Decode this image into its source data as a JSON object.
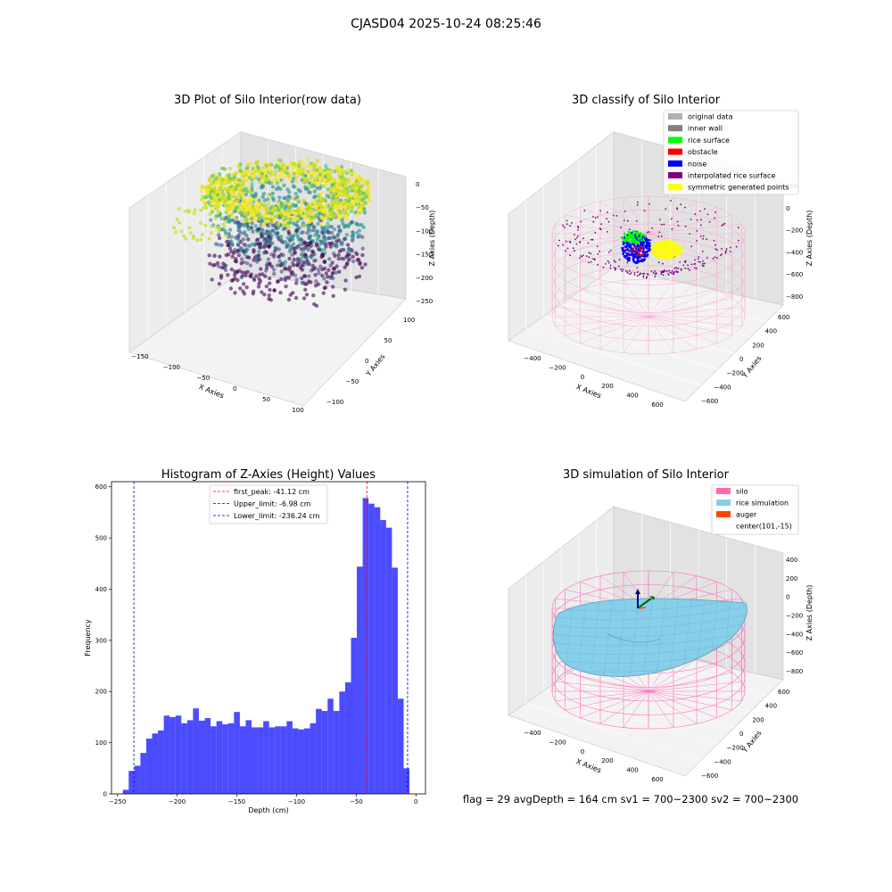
{
  "figure": {
    "suptitle": "CJASD04 2025-10-24 08:25:46",
    "footer": "flag = 29  avgDepth = 164 cm  sv1 = 700~2300  sv2 = 700~2300"
  },
  "panels": {
    "raw": {
      "title": "3D Plot of Silo Interior(row data)",
      "xlabel": "X Axies",
      "ylabel": "Y Axies",
      "zlabel": "Z Axies (Depth)",
      "xticks": [
        "−150",
        "−100",
        "−50",
        "0",
        "50",
        "100"
      ],
      "yticks": [
        "100",
        "50",
        "0",
        "−50",
        "−100"
      ],
      "zticks": [
        "0",
        "−50",
        "−100",
        "−150",
        "−200",
        "−250"
      ],
      "colormap": [
        "#440154",
        "#3b528b",
        "#21918c",
        "#5ec962",
        "#c8e020",
        "#fde725"
      ]
    },
    "classify": {
      "title": "3D classify of Silo Interior",
      "xlabel": "X Axies",
      "ylabel": "Y Axies",
      "zlabel": "Z Axies (Depth)",
      "xticks": [
        "−400",
        "−200",
        "0",
        "200",
        "400",
        "600"
      ],
      "yticks": [
        "600",
        "400",
        "200",
        "0",
        "−200",
        "−400",
        "−600"
      ],
      "zticks": [
        "200",
        "0",
        "−200",
        "−400",
        "−600",
        "−800"
      ],
      "legend": [
        {
          "label": "original data",
          "color": "#b0b0b0"
        },
        {
          "label": "inner wall",
          "color": "#808080"
        },
        {
          "label": "rice surface",
          "color": "#00ff00"
        },
        {
          "label": "obstacle",
          "color": "#ff0000"
        },
        {
          "label": "noise",
          "color": "#0000ff"
        },
        {
          "label": "interpolated rice surface",
          "color": "#800080"
        },
        {
          "label": "symmetric generated points",
          "color": "#ffff00"
        }
      ]
    },
    "simulation": {
      "title": "3D simulation of Silo Interior",
      "xlabel": "X Axies",
      "ylabel": "Y Axies",
      "zlabel": "Z Axies (Depth)",
      "xticks": [
        "−400",
        "−200",
        "0",
        "200",
        "400",
        "600"
      ],
      "yticks": [
        "600",
        "400",
        "200",
        "0",
        "−200",
        "−400",
        "−600"
      ],
      "zticks": [
        "400",
        "200",
        "0",
        "−200",
        "−400",
        "−600",
        "−800"
      ],
      "legend": [
        {
          "label": "silo",
          "color": "#ff69b4"
        },
        {
          "label": "rice simulation",
          "color": "#87ceeb"
        },
        {
          "label": "auger",
          "color": "#ff4500"
        },
        {
          "label": "center(101,-15)",
          "color": null
        }
      ]
    }
  },
  "chart_data": [
    {
      "type": "heatmap",
      "title": "3D Plot of Silo Interior(row data)",
      "xlabel": "X Axies",
      "ylabel": "Y Axies",
      "zlabel": "Z Axies (Depth)",
      "xlim": [
        -150,
        100
      ],
      "ylim": [
        -100,
        100
      ],
      "zlim": [
        -270,
        10
      ],
      "colormap": "viridis"
    },
    {
      "type": "scatter",
      "title": "3D classify of Silo Interior",
      "xlabel": "X Axies",
      "ylabel": "Y Axies",
      "zlabel": "Z Axies (Depth)",
      "xlim": [
        -450,
        650
      ],
      "ylim": [
        -650,
        650
      ],
      "zlim": [
        -850,
        250
      ]
    },
    {
      "type": "bar",
      "title": "Histogram of Z-Axies (Height) Values",
      "xlabel": "Depth (cm)",
      "ylabel": "Frequency",
      "xlim": [
        -255,
        8
      ],
      "ylim": [
        0,
        610
      ],
      "xticks": [
        -250,
        -200,
        -150,
        -100,
        -50,
        0
      ],
      "yticks": [
        0,
        100,
        200,
        300,
        400,
        500,
        600
      ],
      "bin_start": -245.5,
      "bin_width": 4.9,
      "color": "#0000ff",
      "values": [
        8,
        45,
        55,
        80,
        108,
        118,
        124,
        153,
        150,
        153,
        138,
        144,
        167,
        143,
        148,
        132,
        142,
        136,
        138,
        160,
        132,
        144,
        130,
        130,
        142,
        130,
        132,
        132,
        142,
        128,
        126,
        128,
        138,
        166,
        162,
        186,
        162,
        200,
        218,
        305,
        444,
        578,
        567,
        560,
        535,
        520,
        442,
        186,
        50
      ],
      "lines": [
        {
          "label": "first_peak: -41.12 cm",
          "x": -41.12,
          "color": "#ff0000"
        },
        {
          "label": "Upper_limit: -6.98 cm",
          "x": -6.98,
          "color": "#0000cc"
        },
        {
          "label": "Lower_limit: -236.24 cm",
          "x": -236.24,
          "color": "#0000cc"
        }
      ],
      "legend": "top-center"
    },
    {
      "type": "area",
      "title": "3D simulation of Silo Interior",
      "xlabel": "X Axies",
      "ylabel": "Y Axies",
      "zlabel": "Z Axies (Depth)",
      "xlim": [
        -450,
        650
      ],
      "ylim": [
        -650,
        650
      ],
      "zlim": [
        -850,
        450
      ]
    }
  ]
}
